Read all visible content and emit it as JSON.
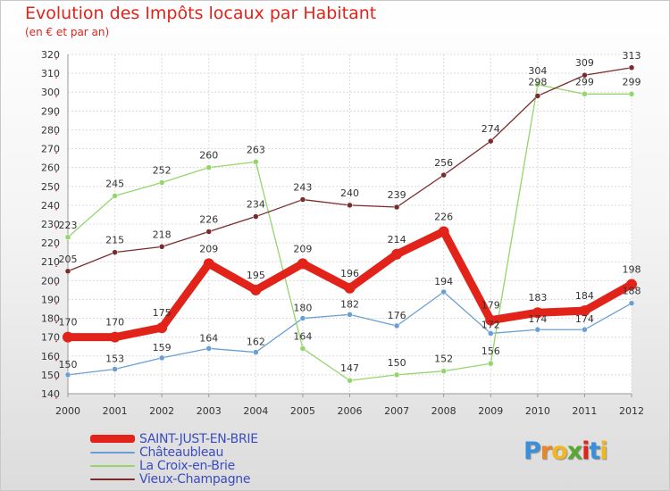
{
  "header": {
    "title": "Evolution des Impôts locaux par Habitant",
    "subtitle": "(en € et par an)"
  },
  "logo": {
    "text": "Proxiti",
    "letters": [
      "P",
      "r",
      "o",
      "x",
      "i",
      "t",
      "i"
    ],
    "colors": [
      "#3b8fd8",
      "#e9852a",
      "#f2b620",
      "#5aa832",
      "#e2231a",
      "#3b8fd8",
      "#f2b620"
    ]
  },
  "chart_data": {
    "type": "line",
    "x": [
      2000,
      2001,
      2002,
      2003,
      2004,
      2005,
      2006,
      2007,
      2008,
      2009,
      2010,
      2011,
      2012
    ],
    "ylim": [
      140,
      320
    ],
    "yticks": [
      140,
      150,
      160,
      170,
      180,
      190,
      200,
      210,
      220,
      230,
      240,
      250,
      260,
      270,
      280,
      290,
      300,
      310,
      320
    ],
    "grid": true,
    "legend_position": "bottom-left",
    "series": [
      {
        "name": "SAINT-JUST-EN-BRIE",
        "color": "#e2231a",
        "highlight": true,
        "values": [
          170,
          170,
          175,
          209,
          195,
          209,
          196,
          214,
          226,
          179,
          183,
          184,
          198
        ]
      },
      {
        "name": "Châteaubleau",
        "color": "#6b9fd4",
        "highlight": false,
        "values": [
          150,
          153,
          159,
          164,
          162,
          180,
          182,
          176,
          194,
          172,
          174,
          174,
          188
        ]
      },
      {
        "name": "La Croix-en-Brie",
        "color": "#94d66b",
        "highlight": false,
        "values": [
          223,
          245,
          252,
          260,
          263,
          164,
          147,
          150,
          152,
          156,
          304,
          299,
          299
        ]
      },
      {
        "name": "Vieux-Champagne",
        "color": "#7a2b2b",
        "highlight": false,
        "values": [
          205,
          215,
          218,
          226,
          234,
          243,
          240,
          239,
          256,
          274,
          298,
          309,
          313
        ]
      }
    ]
  }
}
